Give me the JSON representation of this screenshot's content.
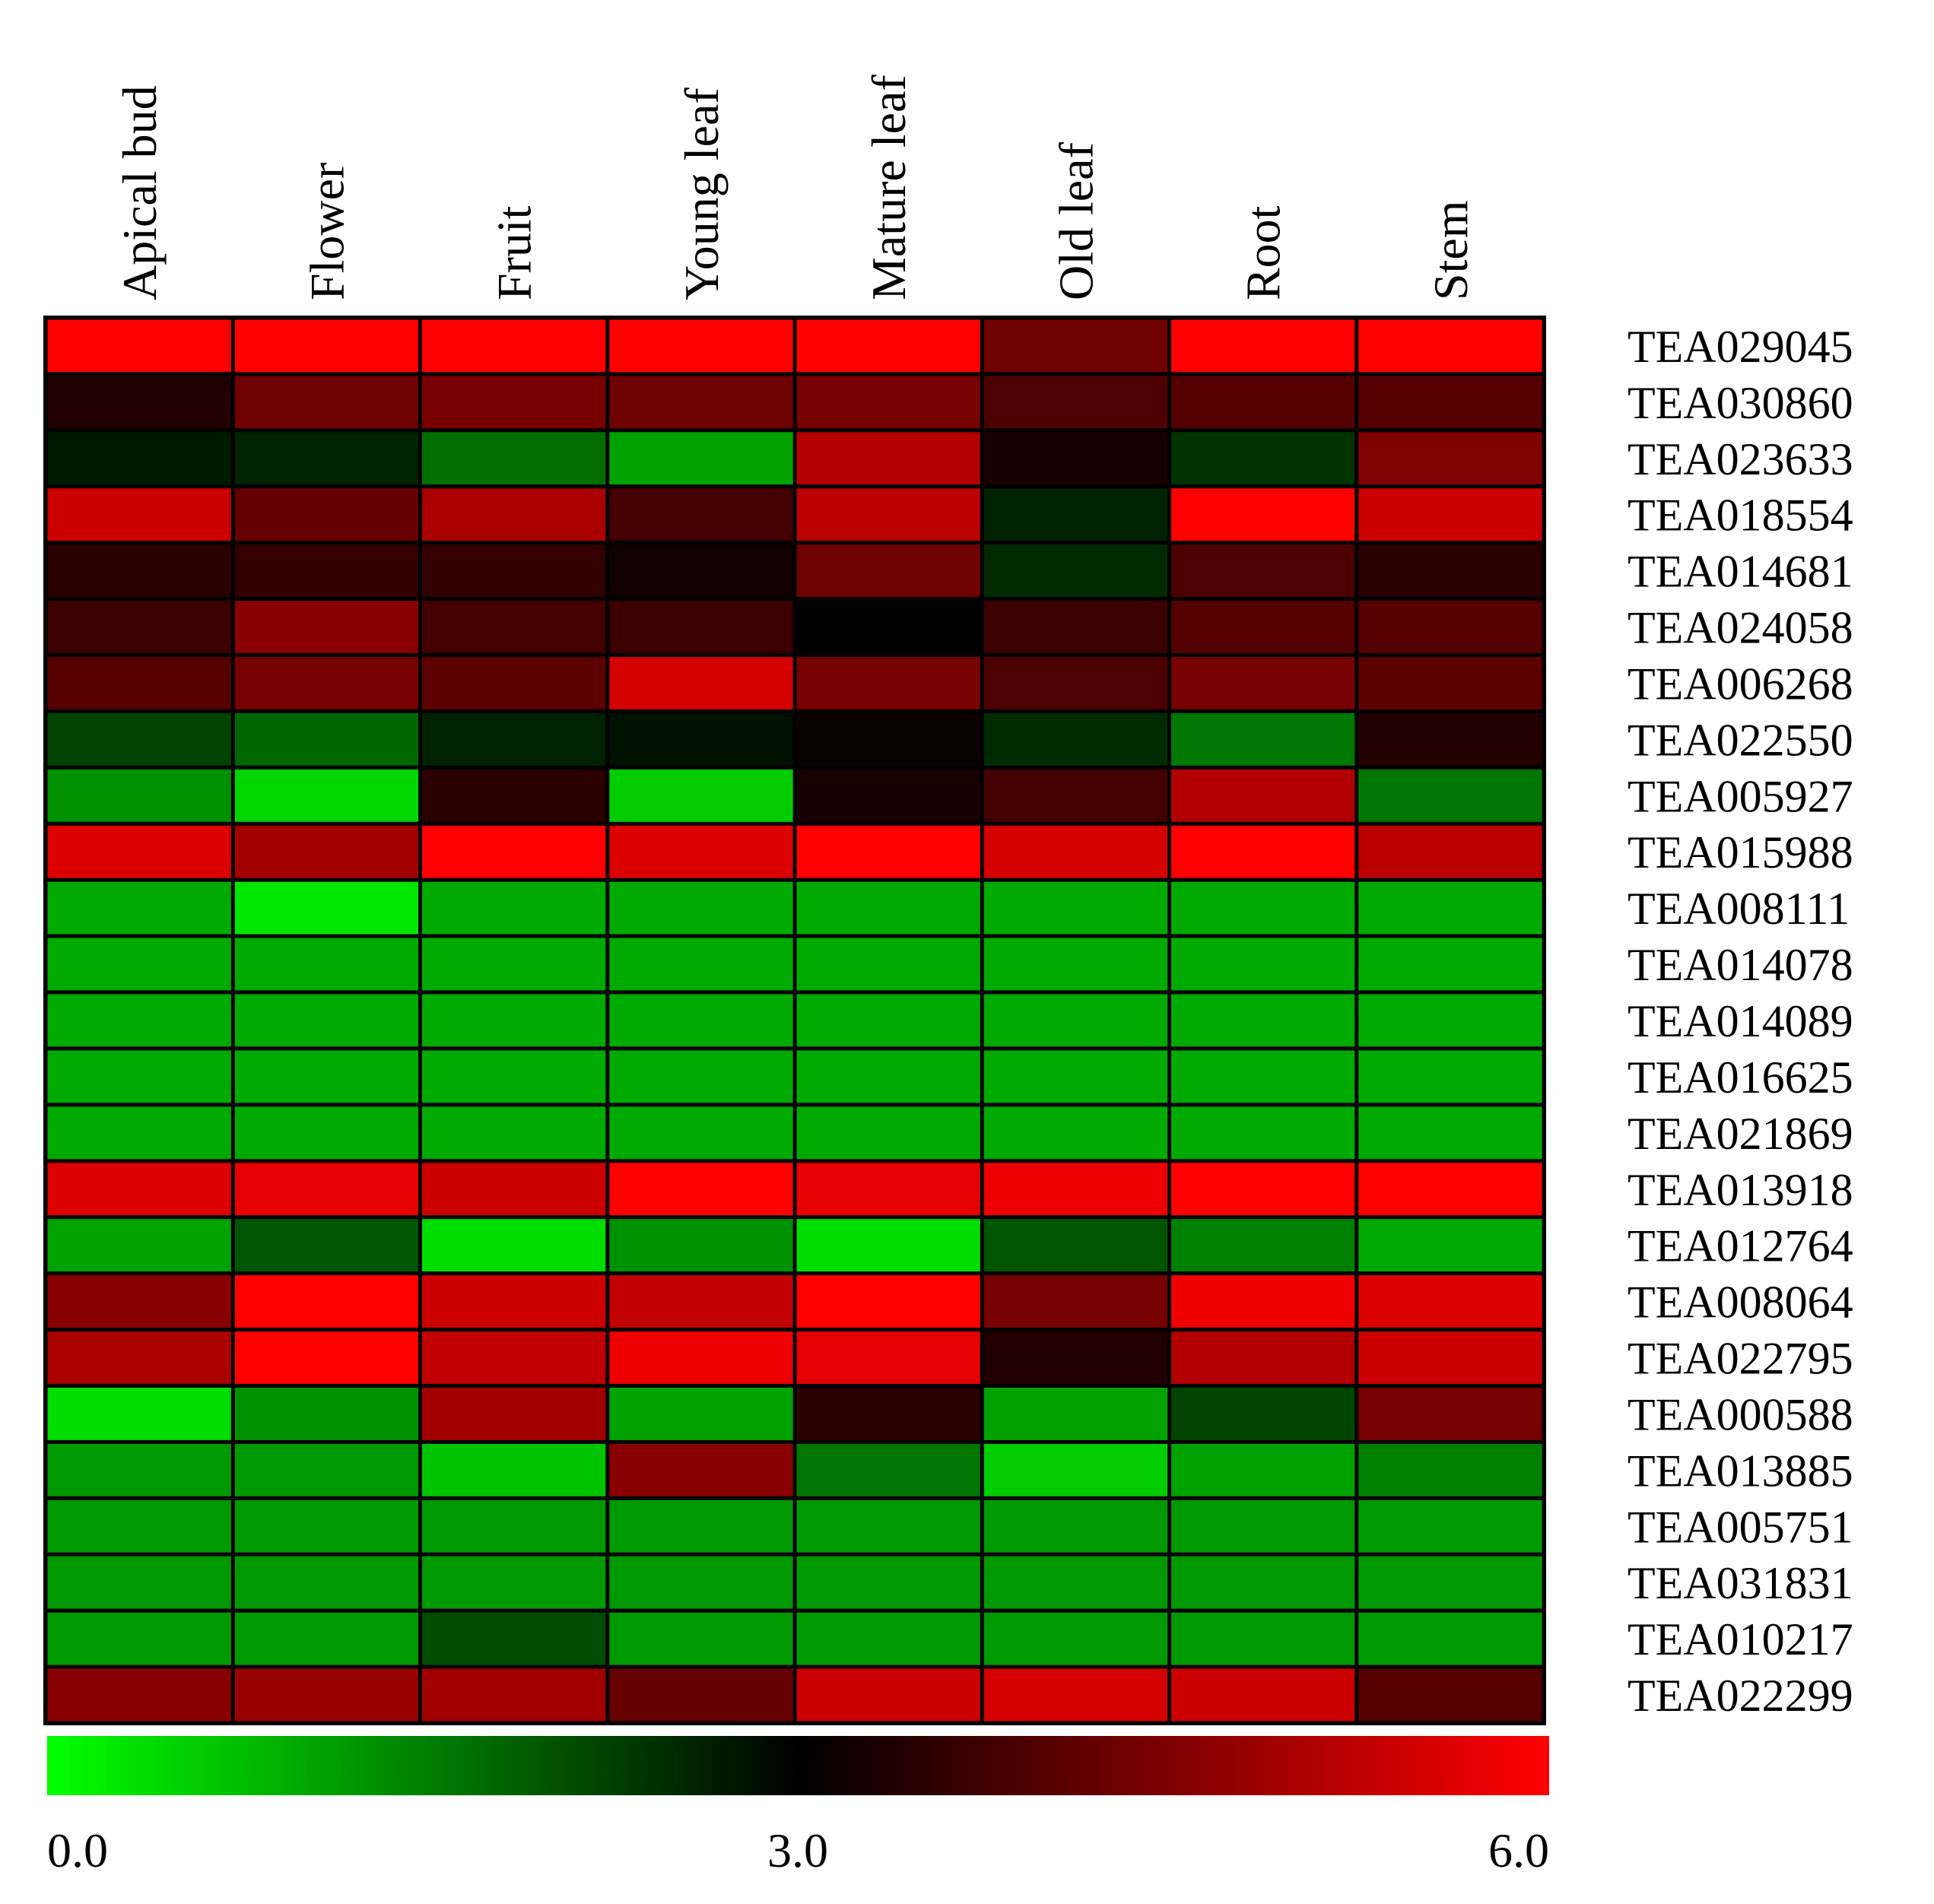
{
  "chart_data": {
    "type": "heatmap",
    "columns": [
      "Apical bud",
      "Flower",
      "Fruit",
      "Young leaf",
      "Mature leaf",
      "Old leaf",
      "Root",
      "Stem"
    ],
    "rows": [
      "TEA029045",
      "TEA030860",
      "TEA023633",
      "TEA018554",
      "TEA014681",
      "TEA024058",
      "TEA006268",
      "TEA022550",
      "TEA005927",
      "TEA015988",
      "TEA008111",
      "TEA014078",
      "TEA014089",
      "TEA016625",
      "TEA021869",
      "TEA013918",
      "TEA012764",
      "TEA008064",
      "TEA022795",
      "TEA000588",
      "TEA013885",
      "TEA005751",
      "TEA031831",
      "TEA010217",
      "TEA022299"
    ],
    "values": [
      [
        6.0,
        6.0,
        6.0,
        6.0,
        6.0,
        4.3,
        6.0,
        6.0
      ],
      [
        3.4,
        4.3,
        4.4,
        4.3,
        4.4,
        3.9,
        4.0,
        4.0
      ],
      [
        2.7,
        2.6,
        1.7,
        1.1,
        5.1,
        3.3,
        2.4,
        4.5
      ],
      [
        5.4,
        4.2,
        5.0,
        3.8,
        5.2,
        2.6,
        6.0,
        5.4
      ],
      [
        3.5,
        3.6,
        3.6,
        3.2,
        4.3,
        2.5,
        3.9,
        3.5
      ],
      [
        3.7,
        4.6,
        3.8,
        3.7,
        3.0,
        3.7,
        4.0,
        4.0
      ],
      [
        4.0,
        4.4,
        4.1,
        5.5,
        4.4,
        3.9,
        4.4,
        4.1
      ],
      [
        2.2,
        1.8,
        2.6,
        2.8,
        3.1,
        2.5,
        1.6,
        3.4
      ],
      [
        1.3,
        0.5,
        3.5,
        0.6,
        3.3,
        3.8,
        5.1,
        1.6
      ],
      [
        5.6,
        4.9,
        6.0,
        5.6,
        6.0,
        5.5,
        6.0,
        5.2
      ],
      [
        1.0,
        0.3,
        1.0,
        1.0,
        1.0,
        1.0,
        1.0,
        1.0
      ],
      [
        1.0,
        1.0,
        1.0,
        1.0,
        1.0,
        1.0,
        1.0,
        1.0
      ],
      [
        1.0,
        1.0,
        1.0,
        1.0,
        1.0,
        1.0,
        1.0,
        1.0
      ],
      [
        1.0,
        1.0,
        1.0,
        1.0,
        1.0,
        1.0,
        1.0,
        1.0
      ],
      [
        1.0,
        1.0,
        1.0,
        1.0,
        1.0,
        1.0,
        1.0,
        1.0
      ],
      [
        5.6,
        5.7,
        5.4,
        6.0,
        5.7,
        5.8,
        6.0,
        6.0
      ],
      [
        1.1,
        2.0,
        0.4,
        1.3,
        0.4,
        2.0,
        1.5,
        1.0
      ],
      [
        4.6,
        6.0,
        5.4,
        5.3,
        6.0,
        4.4,
        5.8,
        5.6
      ],
      [
        5.0,
        6.0,
        5.3,
        5.8,
        5.7,
        3.4,
        5.1,
        5.4
      ],
      [
        0.4,
        1.3,
        4.9,
        1.1,
        3.5,
        1.1,
        2.2,
        4.4
      ],
      [
        1.2,
        1.2,
        0.7,
        4.6,
        1.6,
        0.6,
        1.1,
        1.5
      ],
      [
        1.2,
        1.2,
        1.2,
        1.2,
        1.2,
        1.2,
        1.2,
        1.2
      ],
      [
        1.2,
        1.2,
        1.2,
        1.2,
        1.2,
        1.2,
        1.2,
        1.2
      ],
      [
        1.2,
        1.2,
        2.1,
        1.2,
        1.2,
        1.2,
        1.2,
        1.2
      ],
      [
        4.6,
        4.8,
        4.9,
        4.2,
        5.4,
        5.5,
        5.4,
        4.0
      ]
    ],
    "color_scale": {
      "min": 0.0,
      "mid": 3.0,
      "max": 6.0,
      "min_color": "#00ff00",
      "mid_color": "#000000",
      "max_color": "#ff0000",
      "tick_labels": [
        "0.0",
        "3.0",
        "6.0"
      ]
    },
    "grid_color": "#000000"
  }
}
